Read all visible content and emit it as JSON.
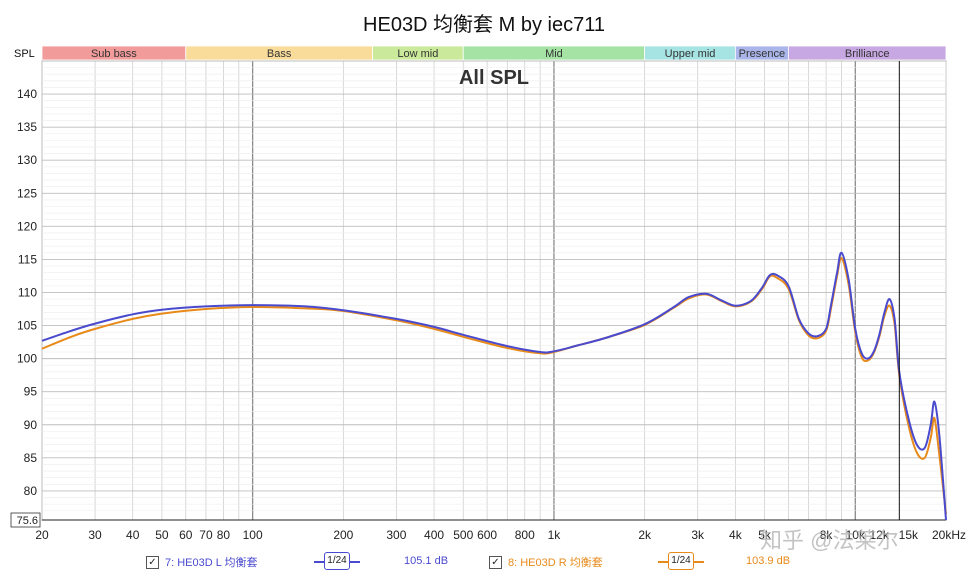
{
  "chart_data": {
    "type": "line",
    "title": "HE03D 均衡套 M by iec711",
    "subtitle": "All SPL",
    "ylabel": "SPL",
    "xscale": "log",
    "xlim": [
      20,
      20000
    ],
    "ylim": [
      75.6,
      145
    ],
    "y_ticks": [
      140,
      135,
      130,
      125,
      120,
      115,
      110,
      105,
      100,
      95,
      90,
      85,
      80
    ],
    "y_min_label": "75.6",
    "x_ticks": [
      {
        "v": 20,
        "label": "20"
      },
      {
        "v": 30,
        "label": "30"
      },
      {
        "v": 40,
        "label": "40"
      },
      {
        "v": 50,
        "label": "50"
      },
      {
        "v": 60,
        "label": "60"
      },
      {
        "v": 70,
        "label": "70"
      },
      {
        "v": 80,
        "label": "80"
      },
      {
        "v": 100,
        "label": "100"
      },
      {
        "v": 200,
        "label": "200"
      },
      {
        "v": 300,
        "label": "300"
      },
      {
        "v": 400,
        "label": "400"
      },
      {
        "v": 500,
        "label": "500"
      },
      {
        "v": 600,
        "label": "600"
      },
      {
        "v": 800,
        "label": "800"
      },
      {
        "v": 1000,
        "label": "1k"
      },
      {
        "v": 2000,
        "label": "2k"
      },
      {
        "v": 3000,
        "label": "3k"
      },
      {
        "v": 4000,
        "label": "4k"
      },
      {
        "v": 5000,
        "label": "5k"
      },
      {
        "v": 8000,
        "label": "8k"
      },
      {
        "v": 10000,
        "label": "10k"
      },
      {
        "v": 12000,
        "label": "12k"
      },
      {
        "v": 15000,
        "label": "15k"
      },
      {
        "v": 20000,
        "label": "20kHz"
      }
    ],
    "cursor_x": 14000,
    "bands": [
      {
        "name": "Sub bass",
        "from": 20,
        "to": 60,
        "color": "#f29b9b"
      },
      {
        "name": "Bass",
        "from": 60,
        "to": 250,
        "color": "#f9dc9a"
      },
      {
        "name": "Low mid",
        "from": 250,
        "to": 500,
        "color": "#cbe99a"
      },
      {
        "name": "Mid",
        "from": 500,
        "to": 2000,
        "color": "#a4e3a4"
      },
      {
        "name": "Upper mid",
        "from": 2000,
        "to": 4000,
        "color": "#a6e3e3"
      },
      {
        "name": "Presence",
        "from": 4000,
        "to": 6000,
        "color": "#aab6ea"
      },
      {
        "name": "Brilliance",
        "from": 6000,
        "to": 20000,
        "color": "#c8a8e2"
      }
    ],
    "series": [
      {
        "name": "7: HE03D L 均衡套",
        "color": "#4a4acf",
        "level": "105.1 dB",
        "smoothing": "1/24",
        "x": [
          20,
          25,
          30,
          40,
          50,
          70,
          100,
          150,
          200,
          300,
          400,
          500,
          700,
          900,
          1000,
          1200,
          1500,
          2000,
          2500,
          2800,
          3200,
          3600,
          4000,
          4500,
          4900,
          5200,
          5500,
          6000,
          6500,
          7000,
          7500,
          8000,
          8300,
          8700,
          9000,
          9500,
          10000,
          10500,
          11000,
          11500,
          12000,
          12500,
          13000,
          13500,
          14000,
          15000,
          16000,
          17000,
          17800,
          18300,
          19000,
          20000
        ],
        "y": [
          102.7,
          104.2,
          105.3,
          106.7,
          107.4,
          107.9,
          108.1,
          107.9,
          107.3,
          106.0,
          104.8,
          103.6,
          101.9,
          101.0,
          101.1,
          102.0,
          103.2,
          105.2,
          107.8,
          109.3,
          109.8,
          108.8,
          108.0,
          108.7,
          110.7,
          112.6,
          112.6,
          111.0,
          106.0,
          103.8,
          103.4,
          104.5,
          108.0,
          113.0,
          116.0,
          112.0,
          104.5,
          100.8,
          100.0,
          101.0,
          103.5,
          107.0,
          109.0,
          106.0,
          98.0,
          91.0,
          87.0,
          86.5,
          90.0,
          93.5,
          88.5,
          75.6
        ]
      },
      {
        "name": "8: HE03D R 均衡套",
        "color": "#e88a1a",
        "level": "103.9 dB",
        "smoothing": "1/24",
        "x": [
          20,
          25,
          30,
          40,
          50,
          70,
          100,
          150,
          200,
          300,
          400,
          500,
          700,
          900,
          1000,
          1200,
          1500,
          2000,
          2500,
          2800,
          3200,
          3600,
          4000,
          4500,
          4900,
          5200,
          5500,
          6000,
          6500,
          7000,
          7500,
          8000,
          8300,
          8700,
          9000,
          9500,
          10000,
          10500,
          11000,
          11500,
          12000,
          12500,
          13000,
          13500,
          14000,
          15000,
          16000,
          17000,
          17800,
          18300,
          19000,
          20000
        ],
        "y": [
          101.5,
          103.3,
          104.5,
          106.0,
          106.8,
          107.5,
          107.8,
          107.6,
          107.2,
          105.8,
          104.5,
          103.3,
          101.6,
          100.8,
          101.0,
          102.0,
          103.2,
          105.1,
          107.7,
          109.1,
          109.7,
          108.7,
          107.9,
          108.6,
          110.5,
          112.4,
          112.2,
          110.6,
          105.8,
          103.5,
          103.1,
          104.2,
          107.5,
          112.5,
          115.2,
          111.2,
          104.0,
          100.2,
          99.7,
          100.8,
          103.2,
          106.5,
          108.0,
          105.2,
          97.5,
          90.0,
          85.8,
          85.0,
          88.0,
          91.0,
          85.5,
          76.5
        ]
      }
    ]
  },
  "watermark": "知乎 @法莱尔"
}
